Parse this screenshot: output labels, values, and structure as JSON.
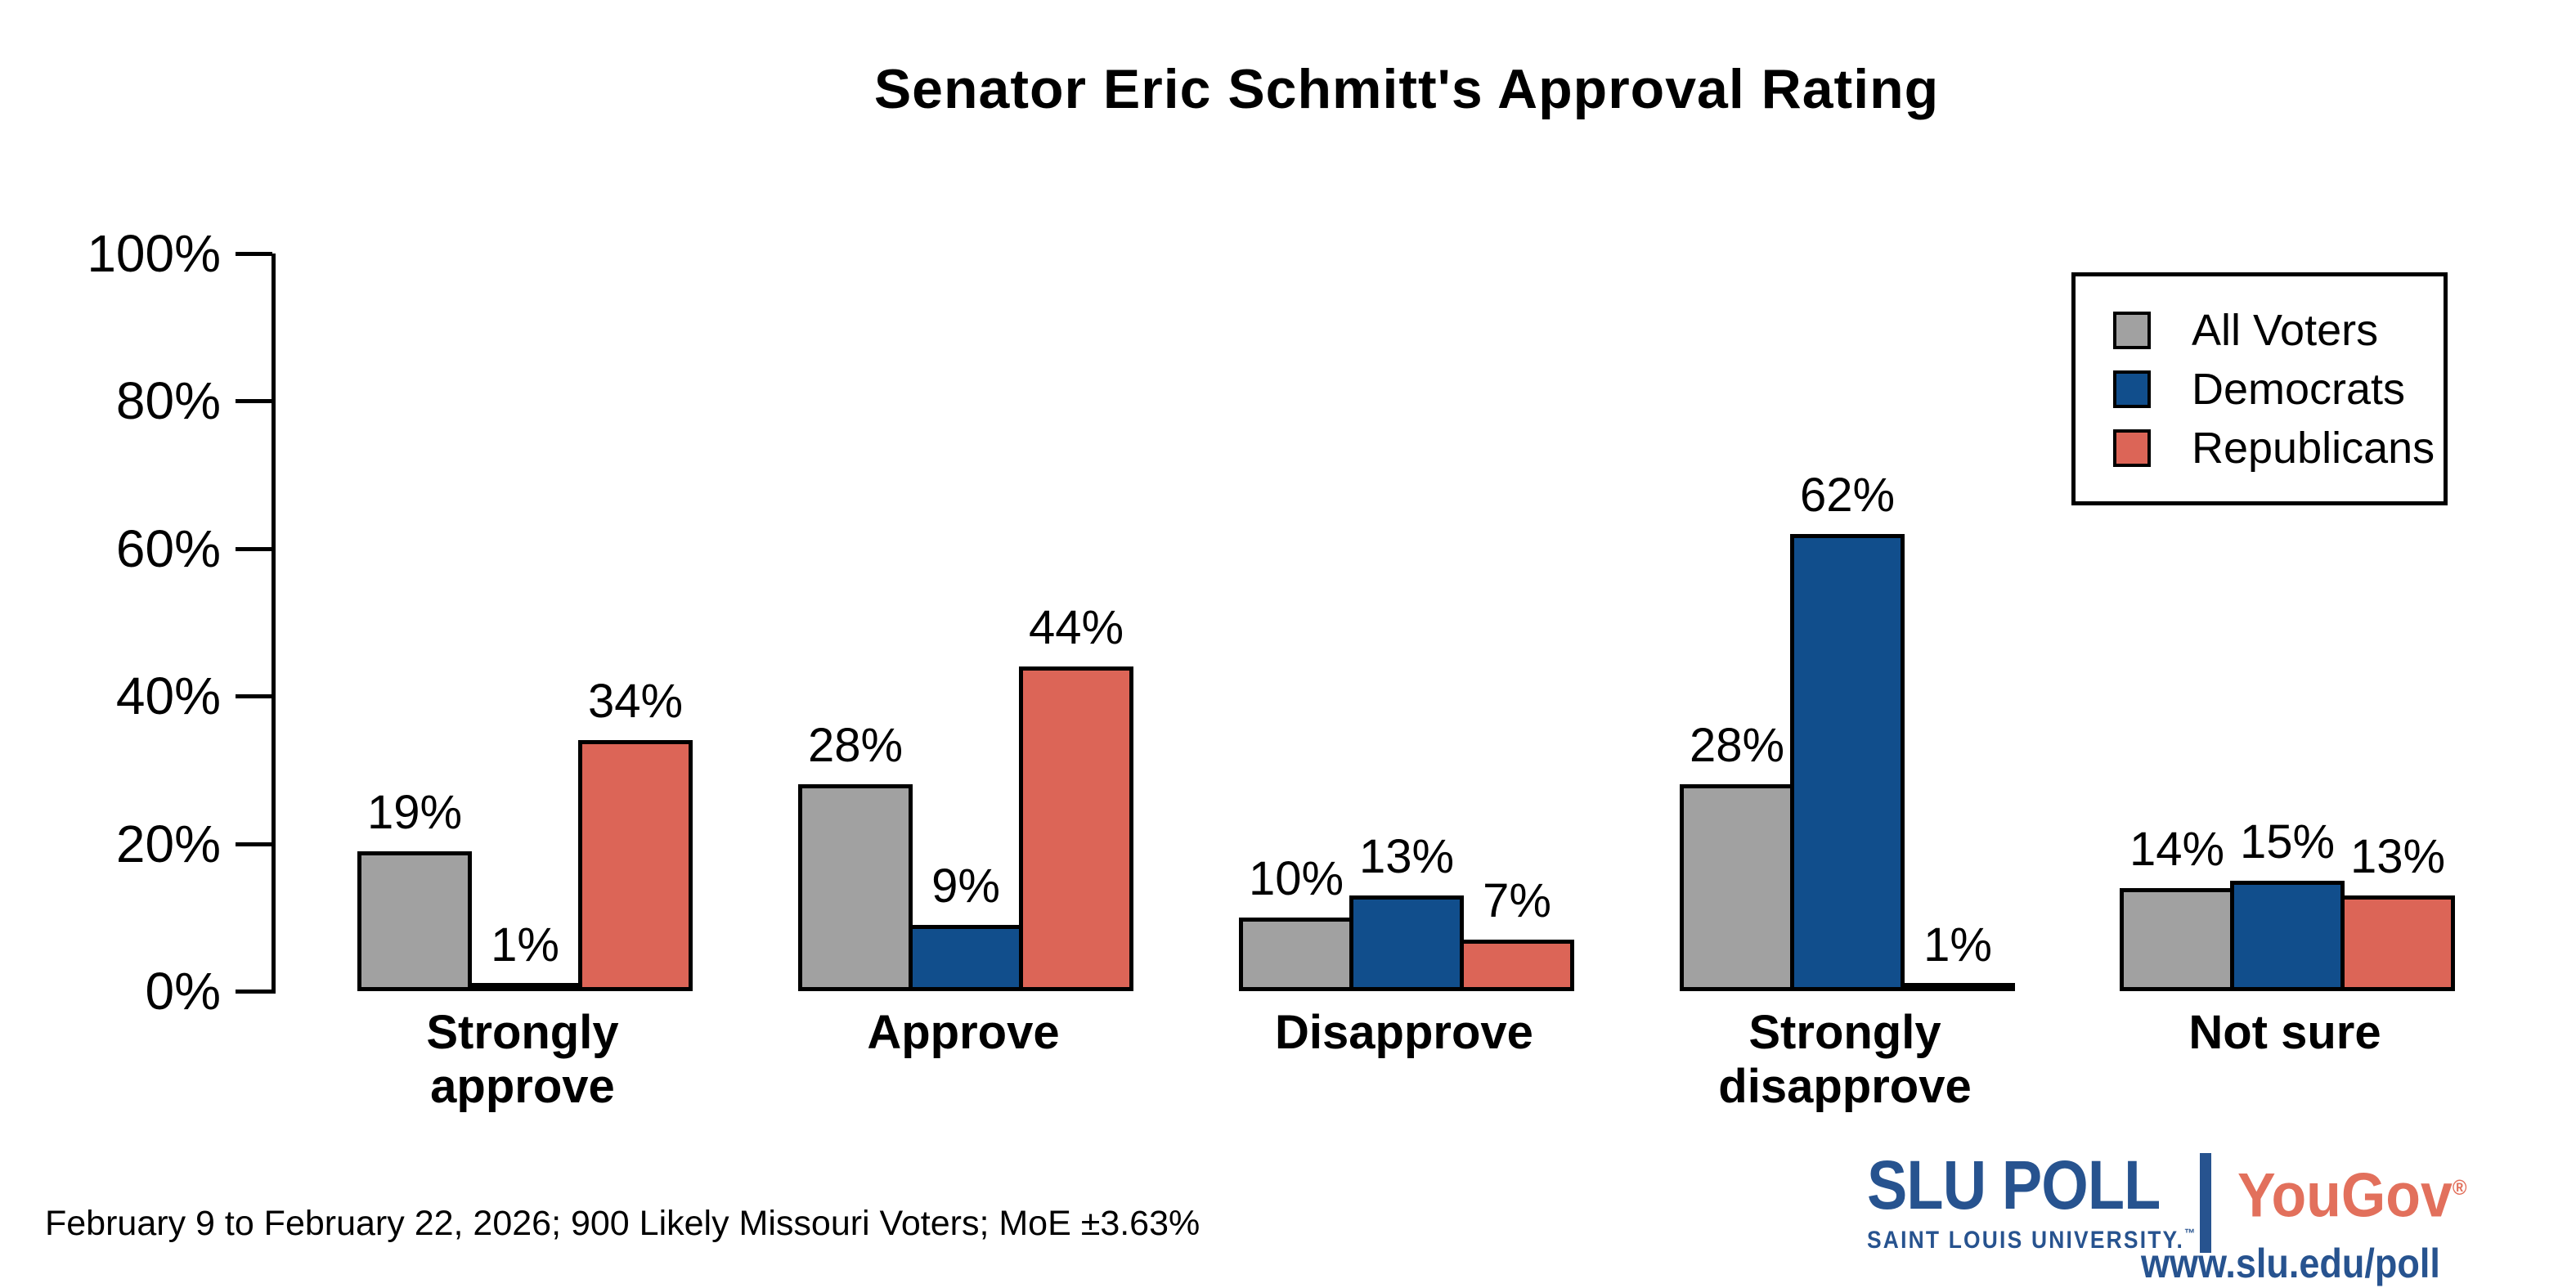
{
  "chart_data": {
    "type": "bar",
    "title": "Senator Eric Schmitt's Approval Rating",
    "categories": [
      "Strongly approve",
      "Approve",
      "Disapprove",
      "Strongly disapprove",
      "Not sure"
    ],
    "category_lines": [
      [
        "Strongly",
        "approve"
      ],
      [
        "Approve"
      ],
      [
        "Disapprove"
      ],
      [
        "Strongly",
        "disapprove"
      ],
      [
        "Not sure"
      ]
    ],
    "series": [
      {
        "name": "All Voters",
        "color": "#A1A1A1",
        "values": [
          19,
          28,
          10,
          28,
          14
        ]
      },
      {
        "name": "Democrats",
        "color": "#114E8C",
        "values": [
          1,
          9,
          13,
          62,
          15
        ]
      },
      {
        "name": "Republicans",
        "color": "#DC6557",
        "values": [
          34,
          44,
          7,
          1,
          13
        ]
      }
    ],
    "value_label_suffix": "%",
    "y_axis": {
      "min": 0,
      "max": 100,
      "ticks": [
        "0%",
        "20%",
        "40%",
        "60%",
        "80%",
        "100%"
      ]
    },
    "legend_position": "top-right",
    "grid": false
  },
  "footer": {
    "note": "February 9 to February 22, 2026; 900 Likely Missouri Voters; MoE ±3.63%"
  },
  "branding": {
    "slu": "SLU",
    "poll": "POLL",
    "slu_sub": "SAINT LOUIS UNIVERSITY.",
    "slu_tm": "™",
    "yougov": "YouGov",
    "yougov_reg": "®",
    "url": "www.slu.edu/poll",
    "slu_blue": "#27538F",
    "yougov_red": "#E2705C"
  }
}
